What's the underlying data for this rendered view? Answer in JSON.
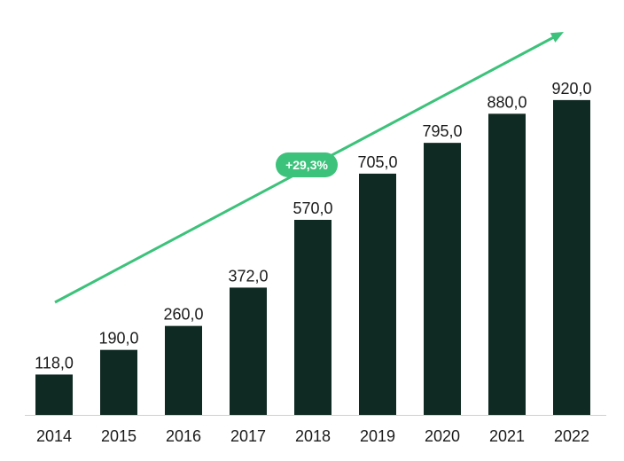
{
  "chart_data": {
    "type": "bar",
    "categories": [
      "2014",
      "2015",
      "2016",
      "2017",
      "2018",
      "2019",
      "2020",
      "2021",
      "2022"
    ],
    "values": [
      118.0,
      190.0,
      260.0,
      372.0,
      570.0,
      705.0,
      795.0,
      880.0,
      920.0
    ],
    "value_labels": [
      "118,0",
      "190,0",
      "260,0",
      "372,0",
      "570,0",
      "705,0",
      "795,0",
      "880,0",
      "920,0"
    ],
    "title": "",
    "xlabel": "",
    "ylabel": "",
    "ylim": [
      0,
      1000
    ],
    "grid": false,
    "legend": "none",
    "annotation": {
      "type": "trend-arrow",
      "label": "+29,3%"
    },
    "colors": {
      "bar": "#0f2a22",
      "trend": "#3cc27a",
      "badge": "#3cc27a",
      "axis": "#d0d0d0"
    }
  }
}
